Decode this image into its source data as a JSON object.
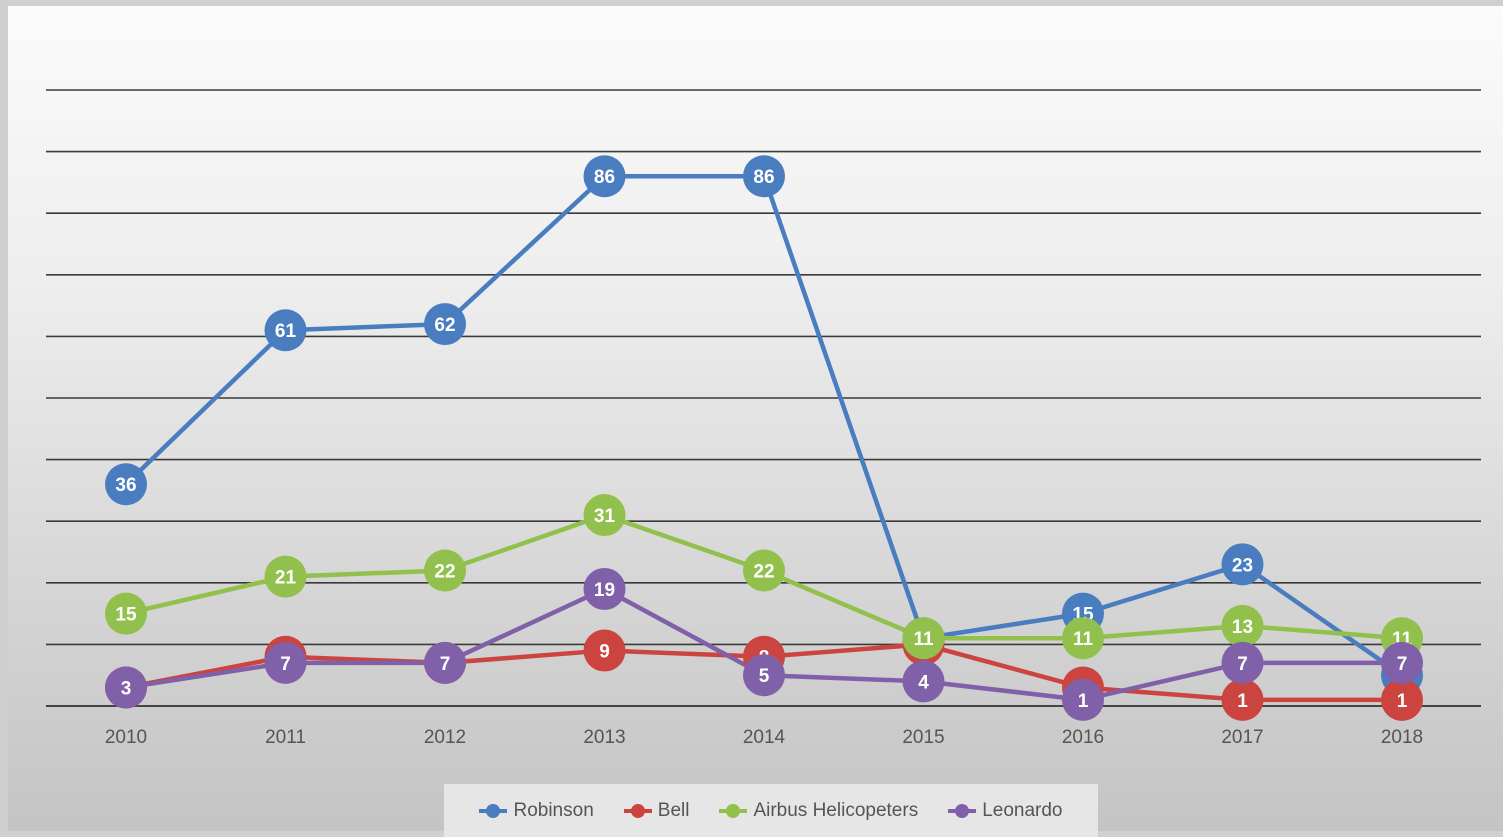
{
  "chart_data": {
    "type": "line",
    "categories": [
      "2010",
      "2011",
      "2012",
      "2013",
      "2014",
      "2015",
      "2016",
      "2017",
      "2018"
    ],
    "series": [
      {
        "name": "Robinson",
        "color": "#4a7cc0",
        "values": [
          36,
          61,
          62,
          86,
          86,
          11,
          15,
          23,
          5
        ]
      },
      {
        "name": "Bell",
        "color": "#cc4440",
        "values": [
          3,
          8,
          7,
          9,
          8,
          10,
          3,
          1,
          1
        ]
      },
      {
        "name": "Airbus Helicopeters",
        "color": "#92c04c",
        "values": [
          15,
          21,
          22,
          31,
          22,
          11,
          11,
          13,
          11
        ]
      },
      {
        "name": "Leonardo",
        "color": "#8060a8",
        "values": [
          3,
          7,
          7,
          19,
          5,
          4,
          1,
          7,
          7
        ]
      }
    ],
    "ylim": [
      0,
      100
    ],
    "grid": true,
    "legend_position": "bottom"
  }
}
